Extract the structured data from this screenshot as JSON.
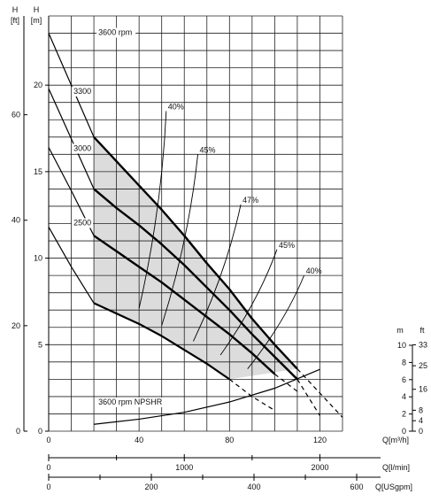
{
  "chart_data": {
    "type": "line",
    "axes": {
      "x_primary": {
        "label": "Q[m³/h]",
        "range": [
          0,
          130
        ],
        "ticks": [
          0,
          40,
          80,
          120
        ]
      },
      "x_lpm": {
        "label": "Q[l/min]",
        "ticks": [
          0,
          1000,
          2000
        ]
      },
      "x_usgpm": {
        "label": "Q[USgpm]",
        "ticks": [
          0,
          200,
          400,
          600
        ]
      },
      "y_left_ft": {
        "unit_letter": "H",
        "unit": "[ft]",
        "ticks": [
          0,
          20,
          40,
          60
        ]
      },
      "y_left_m": {
        "unit_letter": "H",
        "unit": "[m]",
        "range": [
          0,
          24
        ],
        "ticks": [
          0,
          5,
          10,
          15,
          20
        ]
      },
      "y_npshr_m": {
        "unit": "m",
        "range": [
          0,
          10
        ],
        "ticks": [
          0,
          2,
          4,
          6,
          8,
          10
        ]
      },
      "y_npshr_ft": {
        "unit": "ft",
        "ticks": [
          0,
          4,
          8,
          16,
          25,
          33
        ]
      }
    },
    "grid": true,
    "series": [
      {
        "name": "3600 rpm",
        "solid_x": [
          20,
          30,
          40,
          50,
          60,
          70,
          80,
          90,
          100,
          110
        ],
        "solid_y": [
          17.0,
          15.6,
          14.2,
          12.8,
          11.3,
          9.7,
          8.2,
          6.5,
          5.0,
          3.6
        ],
        "dashed_x": [
          110,
          120,
          130
        ],
        "dashed_y": [
          3.6,
          2.2,
          0.8
        ],
        "label_x": 22,
        "label_y": 22.9,
        "head_x": [
          0,
          10
        ],
        "head_y": [
          23.0,
          20.0
        ]
      },
      {
        "name": "3300",
        "solid_x": [
          20,
          30,
          40,
          50,
          60,
          70,
          80,
          90,
          100,
          110
        ],
        "solid_y": [
          14.0,
          12.9,
          11.9,
          10.8,
          9.6,
          8.3,
          7.0,
          5.6,
          4.3,
          3.0
        ],
        "dashed_x": [
          110,
          120
        ],
        "dashed_y": [
          3.0,
          0.9
        ],
        "label_x": 11,
        "label_y": 19.5,
        "head_x": [
          0,
          10
        ],
        "head_y": [
          19.8,
          16.9
        ]
      },
      {
        "name": "3000",
        "solid_x": [
          20,
          30,
          40,
          50,
          60,
          70,
          80,
          90,
          100
        ],
        "solid_y": [
          11.3,
          10.4,
          9.5,
          8.6,
          7.6,
          6.6,
          5.6,
          4.5,
          3.3
        ],
        "dashed_x": [
          100,
          110
        ],
        "dashed_y": [
          3.3,
          2.3
        ],
        "label_x": 11,
        "label_y": 16.2,
        "head_x": [
          0,
          10
        ],
        "head_y": [
          16.4,
          13.9
        ]
      },
      {
        "name": "2500",
        "solid_x": [
          20,
          30,
          40,
          50,
          60,
          70,
          80
        ],
        "solid_y": [
          7.4,
          6.8,
          6.2,
          5.5,
          4.7,
          3.9,
          3.0
        ],
        "dashed_x": [
          80,
          90,
          100
        ],
        "dashed_y": [
          3.0,
          2.0,
          1.2
        ],
        "label_x": 11,
        "label_y": 11.9,
        "head_x": [
          0,
          10
        ],
        "head_y": [
          11.8,
          9.5
        ]
      }
    ],
    "npshr": {
      "name": "3600 rpm NPSHR",
      "x": [
        20,
        40,
        60,
        80,
        100,
        120
      ],
      "y": [
        0.8,
        1.4,
        2.2,
        3.4,
        5.0,
        7.2
      ],
      "label_x": 22,
      "label_y": 3.1
    },
    "efficiency": [
      {
        "label": "40%",
        "x": 52,
        "y": 18.5
      },
      {
        "label": "45%",
        "x": 66,
        "y": 16.0
      },
      {
        "label": "47%",
        "x": 85,
        "y": 13.1
      },
      {
        "label": "45%",
        "x": 101,
        "y": 10.5
      },
      {
        "label": "40%",
        "x": 113,
        "y": 9.0
      }
    ]
  }
}
